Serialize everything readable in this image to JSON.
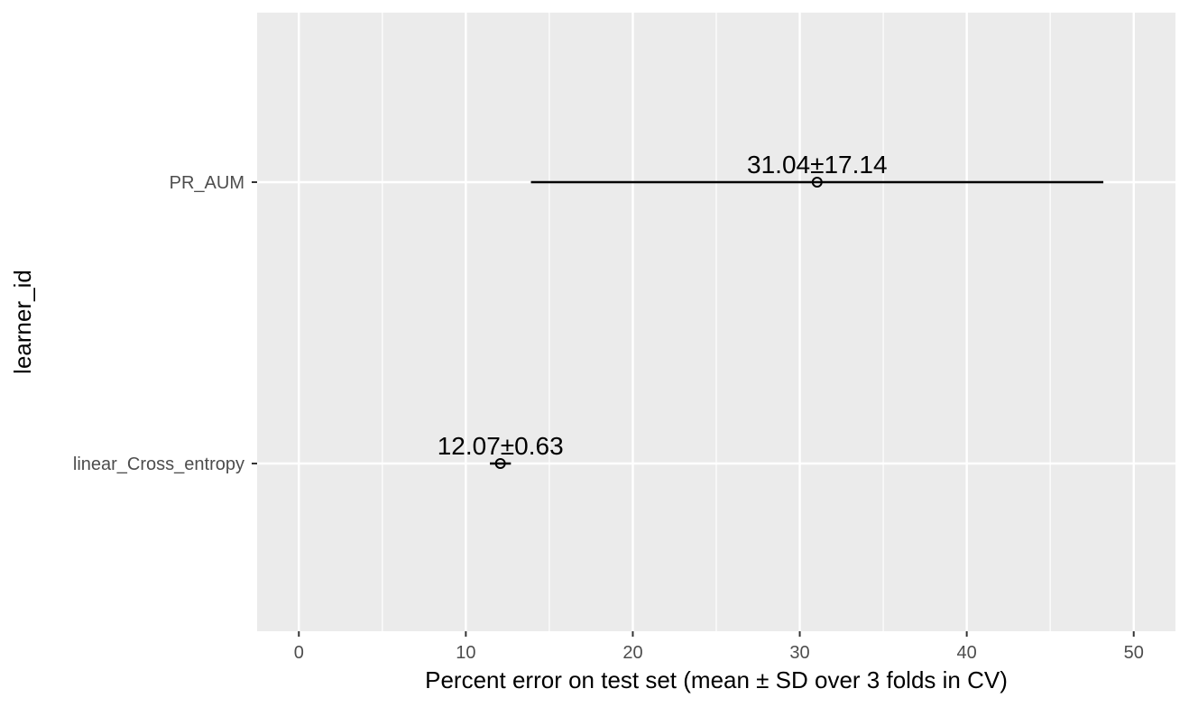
{
  "chart_data": {
    "type": "errorbar",
    "title": "",
    "xlabel": "Percent error on test set (mean ± SD over 3 folds in CV)",
    "ylabel": "learner_id",
    "xlim": [
      -2.5,
      52.5
    ],
    "x_ticks": [
      0,
      10,
      20,
      30,
      40,
      50
    ],
    "categories": [
      "PR_AUM",
      "linear_Cross_entropy"
    ],
    "points": [
      {
        "category": "PR_AUM",
        "mean": 31.04,
        "sd": 17.14,
        "label": "31.04±17.14"
      },
      {
        "category": "linear_Cross_entropy",
        "mean": 12.07,
        "sd": 0.63,
        "label": "12.07±0.63"
      }
    ],
    "grid": true,
    "background": "#ebebeb"
  }
}
